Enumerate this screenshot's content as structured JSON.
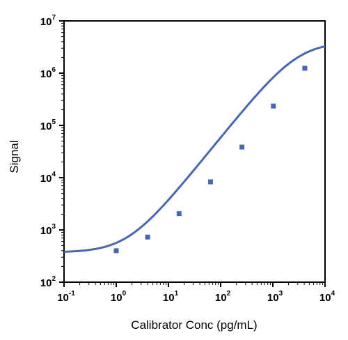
{
  "chart_data": {
    "type": "scatter",
    "title": "",
    "xlabel": "Calibrator Conc (pg/mL)",
    "ylabel": "Signal",
    "x_scale": "log",
    "y_scale": "log",
    "xlim": [
      0.1,
      10000
    ],
    "ylim": [
      100,
      10000000
    ],
    "grid": false,
    "legend": "none",
    "x_ticks": [
      {
        "base": "10",
        "exp": "-1",
        "value": 0.1
      },
      {
        "base": "10",
        "exp": "0",
        "value": 1
      },
      {
        "base": "10",
        "exp": "1",
        "value": 10
      },
      {
        "base": "10",
        "exp": "2",
        "value": 100
      },
      {
        "base": "10",
        "exp": "3",
        "value": 1000
      },
      {
        "base": "10",
        "exp": "4",
        "value": 10000
      }
    ],
    "y_ticks": [
      {
        "base": "10",
        "exp": "2",
        "value": 100
      },
      {
        "base": "10",
        "exp": "3",
        "value": 1000
      },
      {
        "base": "10",
        "exp": "4",
        "value": 10000
      },
      {
        "base": "10",
        "exp": "5",
        "value": 100000
      },
      {
        "base": "10",
        "exp": "6",
        "value": 1000000
      },
      {
        "base": "10",
        "exp": "7",
        "value": 10000000
      }
    ],
    "series": [
      {
        "marker": "square",
        "color": "#4a66b0",
        "x": [
          1,
          4,
          16,
          64,
          256,
          1024,
          4096
        ],
        "y": [
          400,
          730,
          2050,
          8300,
          38500,
          235000,
          1240000
        ]
      }
    ],
    "fit": {
      "type": "4PL",
      "color": "#4a66b0",
      "bottom": 370,
      "top": 4000000,
      "ec50": 3000,
      "hill": 1.24
    }
  }
}
